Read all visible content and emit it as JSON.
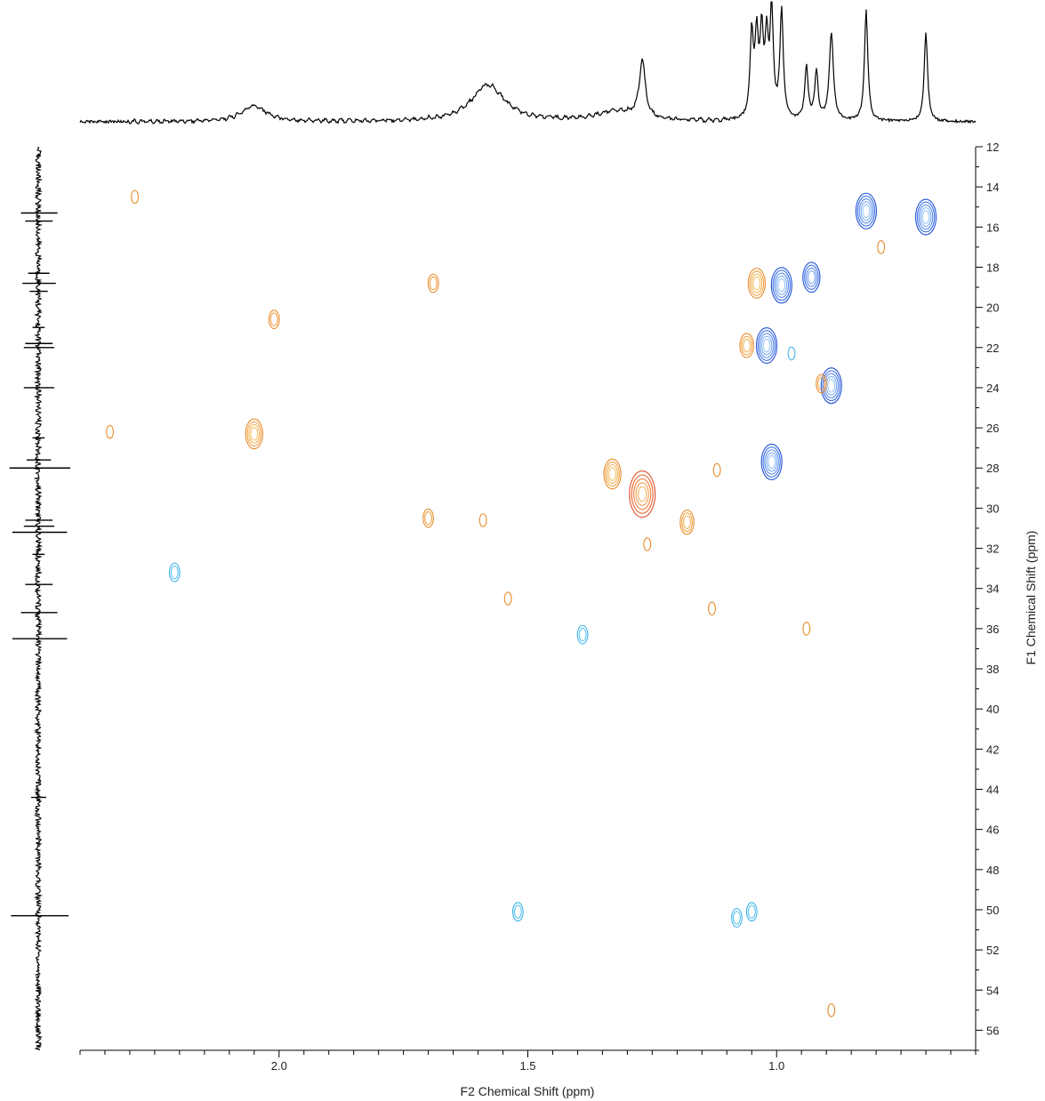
{
  "chart_data": {
    "type": "heatmap",
    "subtype": "2D NMR contour plot (HSQC) with 1D projections",
    "title": "",
    "xlabel": "F2 Chemical Shift (ppm)",
    "ylabel": "F1 Chemical Shift (ppm)",
    "xlim": [
      2.4,
      0.6
    ],
    "ylim": [
      12,
      57
    ],
    "x_axis_reversed": true,
    "y_axis_top_to_bottom": true,
    "x_ticks": [
      "2.0",
      "1.5",
      "1.0"
    ],
    "y_ticks": [
      "12",
      "14",
      "16",
      "18",
      "20",
      "22",
      "24",
      "26",
      "28",
      "30",
      "32",
      "34",
      "36",
      "38",
      "40",
      "42",
      "44",
      "46",
      "48",
      "50",
      "52",
      "54",
      "56"
    ],
    "legend": "none",
    "grid": false,
    "colors": {
      "positive": "#2f62d8",
      "positive_light": "#5ec2f0",
      "negative": "#f2a43c",
      "negative_strong": "#e8622a",
      "axis": "#000000"
    },
    "peaks": [
      {
        "x": 0.82,
        "y": 15.2,
        "sign": "positive",
        "intensity": 5
      },
      {
        "x": 0.7,
        "y": 15.5,
        "sign": "positive",
        "intensity": 5
      },
      {
        "x": 0.99,
        "y": 18.9,
        "sign": "positive",
        "intensity": 5
      },
      {
        "x": 0.93,
        "y": 18.5,
        "sign": "positive",
        "intensity": 4
      },
      {
        "x": 1.04,
        "y": 18.8,
        "sign": "negative",
        "intensity": 4
      },
      {
        "x": 1.02,
        "y": 21.9,
        "sign": "positive",
        "intensity": 5
      },
      {
        "x": 1.06,
        "y": 21.9,
        "sign": "negative",
        "intensity": 3
      },
      {
        "x": 0.89,
        "y": 23.9,
        "sign": "positive",
        "intensity": 5
      },
      {
        "x": 0.91,
        "y": 23.8,
        "sign": "negative",
        "intensity": 2
      },
      {
        "x": 1.01,
        "y": 27.7,
        "sign": "positive",
        "intensity": 5
      },
      {
        "x": 1.27,
        "y": 29.3,
        "sign": "negative_strong",
        "intensity": 5
      },
      {
        "x": 1.33,
        "y": 28.3,
        "sign": "negative",
        "intensity": 4
      },
      {
        "x": 1.18,
        "y": 30.7,
        "sign": "negative",
        "intensity": 3
      },
      {
        "x": 2.05,
        "y": 26.3,
        "sign": "negative",
        "intensity": 4
      },
      {
        "x": 1.69,
        "y": 18.8,
        "sign": "negative",
        "intensity": 2
      },
      {
        "x": 2.01,
        "y": 20.6,
        "sign": "negative",
        "intensity": 2
      },
      {
        "x": 2.29,
        "y": 14.5,
        "sign": "negative",
        "intensity": 1
      },
      {
        "x": 1.7,
        "y": 30.5,
        "sign": "negative",
        "intensity": 2
      },
      {
        "x": 1.59,
        "y": 30.6,
        "sign": "negative",
        "intensity": 1
      },
      {
        "x": 1.26,
        "y": 31.8,
        "sign": "negative",
        "intensity": 1
      },
      {
        "x": 2.21,
        "y": 33.2,
        "sign": "positive_light",
        "intensity": 2
      },
      {
        "x": 1.39,
        "y": 36.3,
        "sign": "positive_light",
        "intensity": 2
      },
      {
        "x": 1.13,
        "y": 35.0,
        "sign": "negative",
        "intensity": 1
      },
      {
        "x": 0.94,
        "y": 36.0,
        "sign": "negative",
        "intensity": 1
      },
      {
        "x": 1.54,
        "y": 34.5,
        "sign": "negative",
        "intensity": 1
      },
      {
        "x": 0.79,
        "y": 17.0,
        "sign": "negative",
        "intensity": 1
      },
      {
        "x": 0.97,
        "y": 22.3,
        "sign": "positive_light",
        "intensity": 1
      },
      {
        "x": 2.34,
        "y": 26.2,
        "sign": "negative",
        "intensity": 1
      },
      {
        "x": 1.12,
        "y": 28.1,
        "sign": "negative",
        "intensity": 1
      },
      {
        "x": 1.52,
        "y": 50.1,
        "sign": "positive_light",
        "intensity": 2
      },
      {
        "x": 1.08,
        "y": 50.4,
        "sign": "positive_light",
        "intensity": 2
      },
      {
        "x": 1.05,
        "y": 50.1,
        "sign": "positive_light",
        "intensity": 2
      },
      {
        "x": 0.89,
        "y": 55.0,
        "sign": "negative",
        "intensity": 1
      }
    ],
    "projection_f2": {
      "description": "1H spectrum projection along top",
      "peaks": [
        {
          "x": 2.05,
          "height": 0.14,
          "width": 0.03
        },
        {
          "x": 1.58,
          "height": 0.33,
          "width": 0.04
        },
        {
          "x": 1.32,
          "height": 0.09,
          "width": 0.05
        },
        {
          "x": 1.27,
          "height": 0.52,
          "width": 0.007
        },
        {
          "x": 1.05,
          "height": 0.75,
          "width": 0.004
        },
        {
          "x": 1.04,
          "height": 0.7,
          "width": 0.004
        },
        {
          "x": 1.03,
          "height": 0.72,
          "width": 0.004
        },
        {
          "x": 1.02,
          "height": 0.66,
          "width": 0.004
        },
        {
          "x": 1.01,
          "height": 0.93,
          "width": 0.004
        },
        {
          "x": 0.99,
          "height": 0.97,
          "width": 0.004
        },
        {
          "x": 0.94,
          "height": 0.48,
          "width": 0.004
        },
        {
          "x": 0.92,
          "height": 0.44,
          "width": 0.004
        },
        {
          "x": 0.89,
          "height": 0.78,
          "width": 0.005
        },
        {
          "x": 0.82,
          "height": 1.0,
          "width": 0.004
        },
        {
          "x": 0.7,
          "height": 0.81,
          "width": 0.004
        }
      ]
    },
    "projection_f1": {
      "description": "13C spectrum projection along left",
      "peaks": [
        {
          "y": 15.3,
          "height": 0.6
        },
        {
          "y": 15.7,
          "height": 0.45
        },
        {
          "y": 18.3,
          "height": 0.35
        },
        {
          "y": 18.8,
          "height": 0.55
        },
        {
          "y": 19.2,
          "height": 0.3
        },
        {
          "y": 21.0,
          "height": 0.2
        },
        {
          "y": 21.8,
          "height": 0.45
        },
        {
          "y": 22.0,
          "height": 0.5
        },
        {
          "y": 24.0,
          "height": 0.5
        },
        {
          "y": 26.5,
          "height": 0.2
        },
        {
          "y": 27.6,
          "height": 0.4
        },
        {
          "y": 28.0,
          "height": 1.0
        },
        {
          "y": 30.6,
          "height": 0.45
        },
        {
          "y": 30.9,
          "height": 0.5
        },
        {
          "y": 31.2,
          "height": 0.9
        },
        {
          "y": 32.3,
          "height": 0.2
        },
        {
          "y": 33.8,
          "height": 0.45
        },
        {
          "y": 35.2,
          "height": 0.6
        },
        {
          "y": 36.5,
          "height": 0.9
        },
        {
          "y": 44.4,
          "height": 0.25
        },
        {
          "y": 50.3,
          "height": 0.95
        }
      ]
    }
  }
}
